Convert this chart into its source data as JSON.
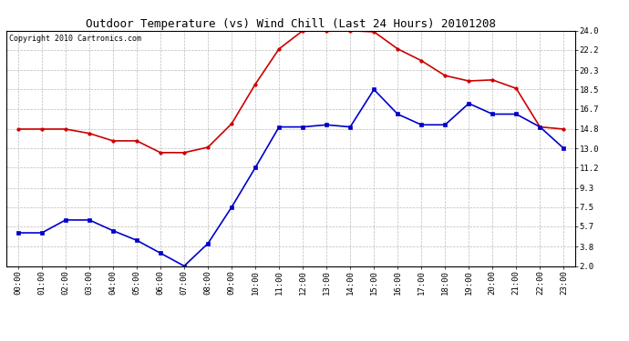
{
  "title": "Outdoor Temperature (vs) Wind Chill (Last 24 Hours) 20101208",
  "copyright": "Copyright 2010 Cartronics.com",
  "hours": [
    "00:00",
    "01:00",
    "02:00",
    "03:00",
    "04:00",
    "05:00",
    "06:00",
    "07:00",
    "08:00",
    "09:00",
    "10:00",
    "11:00",
    "12:00",
    "13:00",
    "14:00",
    "15:00",
    "16:00",
    "17:00",
    "18:00",
    "19:00",
    "20:00",
    "21:00",
    "22:00",
    "23:00"
  ],
  "temp": [
    14.8,
    14.8,
    14.8,
    14.4,
    13.7,
    13.7,
    12.6,
    12.6,
    13.1,
    15.3,
    19.0,
    22.3,
    24.0,
    24.0,
    24.0,
    23.9,
    22.3,
    21.2,
    19.8,
    19.3,
    19.4,
    18.6,
    15.0,
    14.8
  ],
  "windchill": [
    5.1,
    5.1,
    6.3,
    6.3,
    5.3,
    4.4,
    3.2,
    2.0,
    4.1,
    7.5,
    11.2,
    15.0,
    15.0,
    15.2,
    15.0,
    18.5,
    16.2,
    15.2,
    15.2,
    17.2,
    16.2,
    16.2,
    15.0,
    13.0
  ],
  "temp_color": "#cc0000",
  "windchill_color": "#0000cc",
  "bg_color": "#ffffff",
  "grid_color": "#bbbbbb",
  "yticks": [
    2.0,
    3.8,
    5.7,
    7.5,
    9.3,
    11.2,
    13.0,
    14.8,
    16.7,
    18.5,
    20.3,
    22.2,
    24.0
  ],
  "ylim": [
    2.0,
    24.0
  ],
  "title_fontsize": 9,
  "copyright_fontsize": 6,
  "tick_fontsize": 6.5,
  "marker_size": 2.5,
  "line_width": 1.2
}
